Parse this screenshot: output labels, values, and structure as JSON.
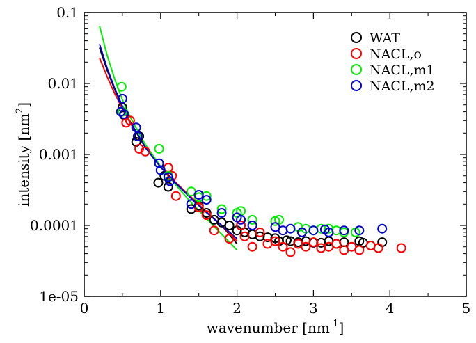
{
  "chart_data": {
    "type": "scatter",
    "xlabel": {
      "base": "wavenumber [nm",
      "sup": "-1",
      "tail": "]"
    },
    "ylabel": {
      "base": "intensity [nm",
      "sup": "2",
      "tail": "]"
    },
    "xlim": [
      0,
      5
    ],
    "ylim": [
      1e-05,
      0.1
    ],
    "yscale": "log",
    "x_ticks": [
      {
        "value": 0,
        "label": "0"
      },
      {
        "value": 1,
        "label": "1"
      },
      {
        "value": 2,
        "label": "2"
      },
      {
        "value": 3,
        "label": "3"
      },
      {
        "value": 4,
        "label": "4"
      },
      {
        "value": 5,
        "label": "5"
      }
    ],
    "y_ticks": [
      {
        "value": 1e-05,
        "label": "1e-05"
      },
      {
        "value": 0.0001,
        "label": "0.0001"
      },
      {
        "value": 0.001,
        "label": "0.001"
      },
      {
        "value": 0.01,
        "label": "0.01"
      },
      {
        "value": 0.1,
        "label": "0.1"
      }
    ],
    "legend_position": "top-right",
    "series": [
      {
        "name": "WAT",
        "color": "#000000",
        "points": [
          [
            0.5,
            0.0046
          ],
          [
            0.52,
            0.0036
          ],
          [
            0.68,
            0.0015
          ],
          [
            0.72,
            0.0018
          ],
          [
            0.97,
            0.0004
          ],
          [
            1.05,
            0.0005
          ],
          [
            1.1,
            0.00035
          ],
          [
            1.4,
            0.00017
          ],
          [
            1.5,
            0.00019
          ],
          [
            1.6,
            0.00015
          ],
          [
            1.7,
            0.00012
          ],
          [
            1.8,
            0.00011
          ],
          [
            1.9,
            0.0001
          ],
          [
            2.0,
            8.5e-05
          ],
          [
            2.1,
            8e-05
          ],
          [
            2.2,
            7.5e-05
          ],
          [
            2.3,
            7e-05
          ],
          [
            2.4,
            6.8e-05
          ],
          [
            2.5,
            6.6e-05
          ],
          [
            2.55,
            6e-05
          ],
          [
            2.65,
            6.2e-05
          ],
          [
            2.7,
            6e-05
          ],
          [
            2.8,
            5.8e-05
          ],
          [
            2.9,
            6e-05
          ],
          [
            3.0,
            5.7e-05
          ],
          [
            3.1,
            5.7e-05
          ],
          [
            3.2,
            6e-05
          ],
          [
            3.3,
            5.5e-05
          ],
          [
            3.4,
            5.8e-05
          ],
          [
            3.6,
            6e-05
          ],
          [
            3.65,
            5.7e-05
          ],
          [
            3.9,
            5.8e-05
          ]
        ],
        "fit": [
          [
            0.2,
            0.032
          ],
          [
            0.3,
            0.0155
          ],
          [
            0.4,
            0.0082
          ],
          [
            0.5,
            0.0047
          ],
          [
            0.6,
            0.0029
          ],
          [
            0.8,
            0.00128
          ],
          [
            1.0,
            0.00068
          ],
          [
            1.2,
            0.0004
          ],
          [
            1.4,
            0.00025
          ],
          [
            1.6,
            0.000155
          ],
          [
            1.8,
            0.0001
          ],
          [
            2.0,
            5.5e-05
          ]
        ]
      },
      {
        "name": "NACL,o",
        "color": "#ff0000",
        "points": [
          [
            0.55,
            0.0028
          ],
          [
            0.6,
            0.003
          ],
          [
            0.72,
            0.0012
          ],
          [
            0.8,
            0.0011
          ],
          [
            1.1,
            0.00065
          ],
          [
            1.15,
            0.0005
          ],
          [
            1.2,
            0.00026
          ],
          [
            1.5,
            0.00018
          ],
          [
            1.6,
            0.00014
          ],
          [
            1.7,
            8.5e-05
          ],
          [
            1.9,
            6.5e-05
          ],
          [
            2.05,
            0.0001
          ],
          [
            2.1,
            7e-05
          ],
          [
            2.2,
            5e-05
          ],
          [
            2.3,
            8e-05
          ],
          [
            2.4,
            5.5e-05
          ],
          [
            2.5,
            6e-05
          ],
          [
            2.6,
            5e-05
          ],
          [
            2.7,
            4.2e-05
          ],
          [
            2.8,
            5.5e-05
          ],
          [
            2.9,
            5e-05
          ],
          [
            3.0,
            5.8e-05
          ],
          [
            3.1,
            4.8e-05
          ],
          [
            3.2,
            5e-05
          ],
          [
            3.3,
            5.5e-05
          ],
          [
            3.4,
            4.5e-05
          ],
          [
            3.5,
            5e-05
          ],
          [
            3.6,
            4.5e-05
          ],
          [
            3.75,
            5.2e-05
          ],
          [
            3.85,
            4.8e-05
          ],
          [
            4.15,
            4.8e-05
          ]
        ],
        "fit": [
          [
            0.2,
            0.023
          ],
          [
            0.3,
            0.0125
          ],
          [
            0.4,
            0.0072
          ],
          [
            0.5,
            0.0044
          ],
          [
            0.6,
            0.0028
          ],
          [
            0.8,
            0.00128
          ],
          [
            1.0,
            0.00068
          ],
          [
            1.2,
            0.0004
          ],
          [
            1.4,
            0.00025
          ],
          [
            1.6,
            0.000155
          ],
          [
            1.8,
            0.0001
          ],
          [
            2.0,
            6e-05
          ]
        ]
      },
      {
        "name": "NACL,m1",
        "color": "#00ee00",
        "points": [
          [
            0.49,
            0.009
          ],
          [
            0.5,
            0.004
          ],
          [
            0.98,
            0.0012
          ],
          [
            1.1,
            0.0005
          ],
          [
            1.4,
            0.0003
          ],
          [
            1.5,
            0.00025
          ],
          [
            1.6,
            0.00026
          ],
          [
            1.8,
            0.00017
          ],
          [
            2.0,
            0.00015
          ],
          [
            2.05,
            0.00016
          ],
          [
            2.2,
            0.00012
          ],
          [
            2.5,
            0.000115
          ],
          [
            2.55,
            0.00012
          ],
          [
            2.8,
            9.5e-05
          ],
          [
            2.9,
            9e-05
          ],
          [
            3.0,
            8.5e-05
          ],
          [
            3.1,
            9e-05
          ],
          [
            3.2,
            9e-05
          ],
          [
            3.3,
            8.5e-05
          ],
          [
            3.4,
            8e-05
          ],
          [
            3.55,
            8e-05
          ]
        ],
        "fit": [
          [
            0.2,
            0.065
          ],
          [
            0.3,
            0.025
          ],
          [
            0.4,
            0.0115
          ],
          [
            0.5,
            0.0059
          ],
          [
            0.6,
            0.0034
          ],
          [
            0.8,
            0.00138
          ],
          [
            1.0,
            0.00068
          ],
          [
            1.2,
            0.00037
          ],
          [
            1.4,
            0.00021
          ],
          [
            1.6,
            0.000125
          ],
          [
            1.8,
            7.5e-05
          ],
          [
            2.0,
            4.5e-05
          ]
        ]
      },
      {
        "name": "NACL,m2",
        "color": "#0000cc",
        "points": [
          [
            0.48,
            0.004
          ],
          [
            0.5,
            0.0061
          ],
          [
            0.52,
            0.0037
          ],
          [
            0.68,
            0.0024
          ],
          [
            0.7,
            0.0018
          ],
          [
            0.98,
            0.00075
          ],
          [
            1.0,
            0.0006
          ],
          [
            1.1,
            0.00048
          ],
          [
            1.12,
            0.00042
          ],
          [
            1.4,
            0.0002
          ],
          [
            1.5,
            0.00027
          ],
          [
            1.6,
            0.00023
          ],
          [
            1.8,
            0.00015
          ],
          [
            2.0,
            0.00013
          ],
          [
            2.05,
            0.00012
          ],
          [
            2.2,
            0.0001
          ],
          [
            2.5,
            9.5e-05
          ],
          [
            2.6,
            8.5e-05
          ],
          [
            2.7,
            9e-05
          ],
          [
            2.85,
            8e-05
          ],
          [
            3.0,
            8.5e-05
          ],
          [
            3.15,
            8.8e-05
          ],
          [
            3.2,
            8e-05
          ],
          [
            3.4,
            8.5e-05
          ],
          [
            3.6,
            8.5e-05
          ],
          [
            3.9,
            9e-05
          ]
        ],
        "fit": [
          [
            0.2,
            0.036
          ],
          [
            0.3,
            0.0165
          ],
          [
            0.4,
            0.0085
          ],
          [
            0.5,
            0.0048
          ],
          [
            0.6,
            0.0029
          ],
          [
            0.8,
            0.00125
          ],
          [
            1.0,
            0.00066
          ],
          [
            1.2,
            0.00039
          ],
          [
            1.4,
            0.00024
          ],
          [
            1.6,
            0.000152
          ],
          [
            1.8,
            0.0001
          ],
          [
            2.0,
            6.5e-05
          ]
        ]
      }
    ]
  }
}
